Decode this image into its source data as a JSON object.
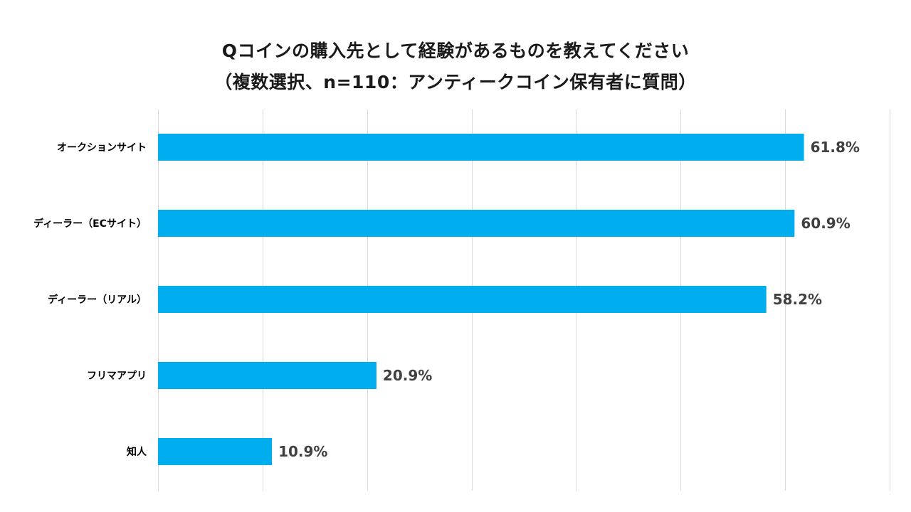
{
  "chart_data": {
    "type": "bar",
    "orientation": "horizontal",
    "title_line1": "Qコインの購入先として経験があるものを教えてください",
    "title_line2": "（複数選択、n=110：アンティークコイン保有者に質問）",
    "categories": [
      "オークションサイト",
      "ディーラー（ECサイト）",
      "ディーラー（リアル）",
      "フリマアプリ",
      "知人"
    ],
    "values": [
      61.8,
      60.9,
      58.2,
      20.9,
      10.9
    ],
    "value_labels": [
      "61.8%",
      "60.9%",
      "58.2%",
      "20.9%",
      "10.9%"
    ],
    "xlim": [
      0,
      70
    ],
    "grid": true,
    "legend": "none",
    "colors": {
      "bar": "#00ADEF",
      "gridline": "#D9D9D9",
      "category_text": "#000000",
      "value_text": "#404040"
    }
  }
}
